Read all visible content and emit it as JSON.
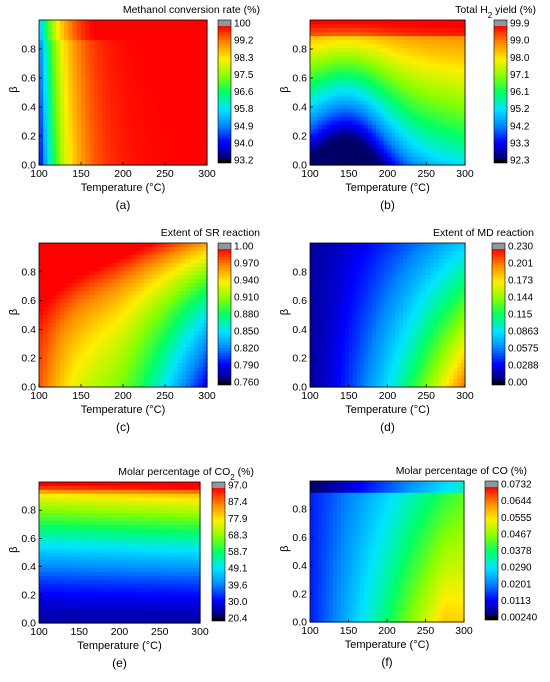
{
  "chart_data": [
    {
      "type": "heatmap",
      "id": "a",
      "title": "Methanol conversion rate (%)",
      "xlabel": "Temperature (°C)",
      "ylabel": "β",
      "xlim": [
        100,
        300
      ],
      "ylim": [
        0,
        1
      ],
      "xticks": [
        "100",
        "150",
        "200",
        "250",
        "300"
      ],
      "yticks": [
        "0.0",
        "0.2",
        "0.4",
        "0.6",
        "0.8"
      ],
      "colorbar": {
        "labels": [
          "100",
          "99.2",
          "98.3",
          "97.5",
          "96.6",
          "95.8",
          "94.9",
          "94.0",
          "93.2"
        ],
        "min": 93.2,
        "max": 100
      },
      "caption": "(a)",
      "description_field": "Conversion ~100% above ~180 °C; near 93% at 100 °C and low β"
    },
    {
      "type": "heatmap",
      "id": "b",
      "title_parts": [
        "Total H",
        "2",
        " yield (%)"
      ],
      "xlabel": "Temperature (°C)",
      "ylabel": "β",
      "xlim": [
        100,
        300
      ],
      "ylim": [
        0,
        1
      ],
      "xticks": [
        "100",
        "150",
        "200",
        "250",
        "300"
      ],
      "yticks": [
        "0.0",
        "0.2",
        "0.4",
        "0.6",
        "0.8"
      ],
      "colorbar": {
        "labels": [
          "99.9",
          "99.0",
          "98.0",
          "97.1",
          "96.1",
          "95.2",
          "94.2",
          "93.3",
          "92.3"
        ],
        "min": 92.3,
        "max": 99.9
      },
      "caption": "(b)"
    },
    {
      "type": "heatmap",
      "id": "c",
      "title": "Extent of SR reaction",
      "xlabel": "Temperature (°C)",
      "ylabel": "β",
      "xlim": [
        100,
        300
      ],
      "ylim": [
        0,
        1
      ],
      "xticks": [
        "100",
        "150",
        "200",
        "250",
        "300"
      ],
      "yticks": [
        "0.0",
        "0.2",
        "0.4",
        "0.6",
        "0.8"
      ],
      "colorbar": {
        "labels": [
          "1.00",
          "0.970",
          "0.940",
          "0.910",
          "0.880",
          "0.850",
          "0.820",
          "0.790",
          "0.760"
        ],
        "min": 0.76,
        "max": 1.0
      },
      "caption": "(c)"
    },
    {
      "type": "heatmap",
      "id": "d",
      "title": "Extent of MD reaction",
      "xlabel": "Temperature (°C)",
      "ylabel": "β",
      "xlim": [
        100,
        300
      ],
      "ylim": [
        0,
        1
      ],
      "xticks": [
        "100",
        "150",
        "200",
        "250",
        "300"
      ],
      "yticks": [
        "0.0",
        "0.2",
        "0.4",
        "0.6",
        "0.8"
      ],
      "colorbar": {
        "labels": [
          "0.230",
          "0.201",
          "0.173",
          "0.144",
          "0.115",
          "0.0863",
          "0.0575",
          "0.0288",
          "0.00"
        ],
        "min": 0.0,
        "max": 0.23
      },
      "caption": "(d)"
    },
    {
      "type": "heatmap",
      "id": "e",
      "title_parts": [
        "Molar percentage of CO",
        "2",
        " (%)"
      ],
      "xlabel": "Temperature (°C)",
      "ylabel": "β",
      "xlim": [
        100,
        300
      ],
      "ylim": [
        0,
        1
      ],
      "xticks": [
        "100",
        "150",
        "200",
        "250",
        "300"
      ],
      "yticks": [
        "0.0",
        "0.2",
        "0.4",
        "0.6",
        "0.8"
      ],
      "colorbar": {
        "labels": [
          "97.0",
          "87.4",
          "77.9",
          "68.3",
          "58.7",
          "49.1",
          "39.6",
          "30.0",
          "20.4"
        ],
        "min": 20.4,
        "max": 97.0
      },
      "caption": "(e)"
    },
    {
      "type": "heatmap",
      "id": "f",
      "title": "Molar percentage of CO (%)",
      "xlabel": "Temperature (°C)",
      "ylabel": "β",
      "xlim": [
        100,
        300
      ],
      "ylim": [
        0,
        1
      ],
      "xticks": [
        "100",
        "150",
        "200",
        "250",
        "300"
      ],
      "yticks": [
        "0.0",
        "0.2",
        "0.4",
        "0.6",
        "0.8"
      ],
      "colorbar": {
        "labels": [
          "0.0732",
          "0.0644",
          "0.0555",
          "0.0467",
          "0.0378",
          "0.0290",
          "0.0201",
          "0.0113",
          "0.00240"
        ],
        "min": 0.0024,
        "max": 0.0732
      },
      "caption": "(f)"
    }
  ],
  "colormap": [
    "#000066",
    "#0000ff",
    "#0088ff",
    "#00e5ff",
    "#00ff66",
    "#88ff00",
    "#ffee00",
    "#ff8800",
    "#ff0000"
  ],
  "colorbar_cap_color": "#8a9aa0"
}
